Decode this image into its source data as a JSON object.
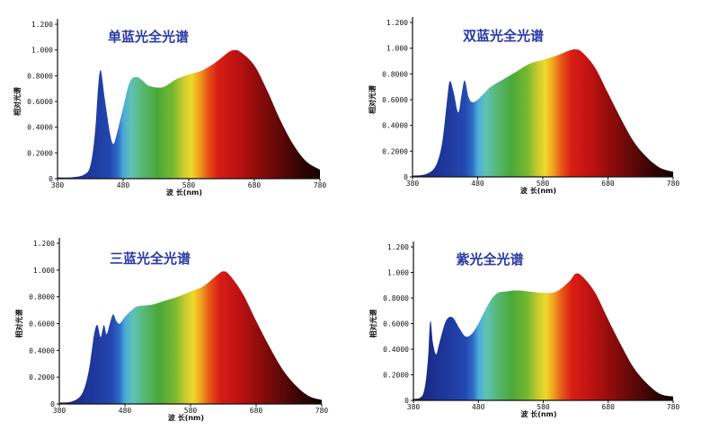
{
  "chart_data": [
    {
      "type": "area",
      "title": "单蓝光全光谱",
      "xlabel": "波 长(nm)",
      "ylabel": "相对光谱",
      "xlim": [
        380,
        780
      ],
      "ylim": [
        0,
        1.2
      ],
      "xticks": [
        "380",
        "480",
        "580",
        "680",
        "780"
      ],
      "yticks": [
        "0",
        "0.2000",
        "0.4000",
        "0.6000",
        "0.8000",
        "1.000",
        "1.200"
      ],
      "x": [
        380,
        400,
        420,
        430,
        437,
        442,
        446,
        452,
        460,
        465,
        470,
        480,
        490,
        500,
        510,
        520,
        540,
        560,
        580,
        600,
        620,
        640,
        650,
        660,
        680,
        700,
        720,
        740,
        760,
        780
      ],
      "y": [
        0.01,
        0.01,
        0.03,
        0.1,
        0.35,
        0.72,
        0.84,
        0.62,
        0.35,
        0.27,
        0.34,
        0.55,
        0.75,
        0.79,
        0.76,
        0.72,
        0.71,
        0.77,
        0.81,
        0.84,
        0.9,
        0.98,
        1.0,
        0.98,
        0.88,
        0.68,
        0.45,
        0.26,
        0.13,
        0.07
      ]
    },
    {
      "type": "area",
      "title": "双蓝光全光谱",
      "xlabel": "波 长(nm)",
      "ylabel": "相对光谱",
      "xlim": [
        380,
        780
      ],
      "ylim": [
        0,
        1.2
      ],
      "xticks": [
        "380",
        "480",
        "580",
        "680",
        "780"
      ],
      "yticks": [
        "0",
        "0.2000",
        "0.4000",
        "0.6000",
        "0.8000",
        "1.000",
        "1.200"
      ],
      "x": [
        380,
        400,
        415,
        425,
        432,
        437,
        443,
        450,
        455,
        460,
        466,
        472,
        480,
        490,
        500,
        520,
        540,
        560,
        580,
        600,
        620,
        630,
        640,
        660,
        680,
        700,
        720,
        740,
        760,
        780
      ],
      "y": [
        0.01,
        0.02,
        0.08,
        0.25,
        0.55,
        0.74,
        0.66,
        0.5,
        0.63,
        0.75,
        0.62,
        0.58,
        0.6,
        0.65,
        0.7,
        0.76,
        0.82,
        0.88,
        0.91,
        0.94,
        0.98,
        0.99,
        0.97,
        0.85,
        0.65,
        0.45,
        0.27,
        0.15,
        0.07,
        0.04
      ]
    },
    {
      "type": "area",
      "title": "三蓝光全光谱",
      "xlabel": "波 长(nm)",
      "ylabel": "相对光谱",
      "xlim": [
        380,
        780
      ],
      "ylim": [
        0,
        1.2
      ],
      "xticks": [
        "380",
        "480",
        "580",
        "680",
        "780"
      ],
      "yticks": [
        "0",
        "0.2000",
        "0.4000",
        "0.6000",
        "0.8000",
        "1.000",
        "1.200"
      ],
      "x": [
        380,
        400,
        415,
        425,
        433,
        438,
        443,
        448,
        452,
        457,
        462,
        467,
        472,
        480,
        490,
        500,
        520,
        540,
        560,
        580,
        600,
        620,
        630,
        640,
        660,
        680,
        700,
        720,
        740,
        760,
        780
      ],
      "y": [
        0.01,
        0.02,
        0.08,
        0.25,
        0.52,
        0.59,
        0.5,
        0.59,
        0.52,
        0.6,
        0.67,
        0.62,
        0.6,
        0.65,
        0.7,
        0.73,
        0.74,
        0.77,
        0.8,
        0.84,
        0.88,
        0.96,
        0.99,
        0.96,
        0.82,
        0.62,
        0.43,
        0.26,
        0.14,
        0.06,
        0.03
      ]
    },
    {
      "type": "area",
      "title": "紫光全光谱",
      "xlabel": "波 长(nm)",
      "ylabel": "相对光谱",
      "xlim": [
        380,
        780
      ],
      "ylim": [
        0,
        1.2
      ],
      "xticks": [
        "380",
        "480",
        "580",
        "680",
        "780"
      ],
      "yticks": [
        "0",
        "0.2000",
        "0.4000",
        "0.6000",
        "0.8000",
        "1.000",
        "1.200"
      ],
      "x": [
        380,
        395,
        402,
        406,
        410,
        415,
        420,
        430,
        440,
        450,
        460,
        470,
        480,
        490,
        500,
        510,
        520,
        540,
        560,
        580,
        600,
        620,
        630,
        640,
        660,
        680,
        700,
        720,
        740,
        760,
        780
      ],
      "y": [
        0.01,
        0.05,
        0.3,
        0.62,
        0.45,
        0.36,
        0.45,
        0.62,
        0.65,
        0.57,
        0.5,
        0.52,
        0.6,
        0.7,
        0.79,
        0.84,
        0.85,
        0.86,
        0.85,
        0.84,
        0.85,
        0.93,
        0.99,
        0.97,
        0.84,
        0.63,
        0.43,
        0.25,
        0.13,
        0.05,
        0.03
      ]
    }
  ]
}
